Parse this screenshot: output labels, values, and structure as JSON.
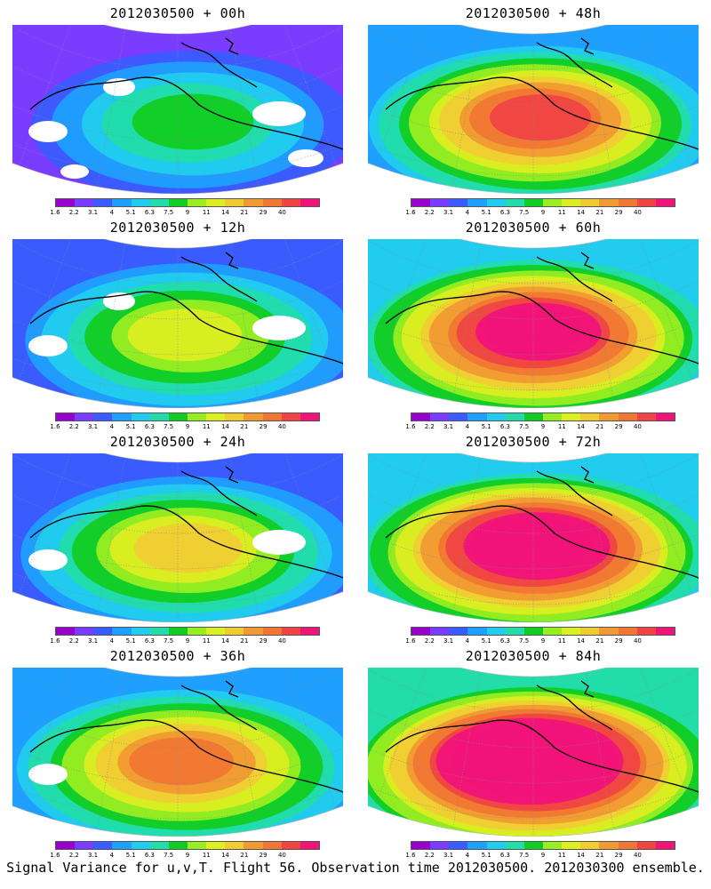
{
  "panels": [
    {
      "title": "2012030500 + 00h",
      "lead": "00h",
      "intensity": 0.15
    },
    {
      "title": "2012030500 + 48h",
      "lead": "48h",
      "intensity": 0.6
    },
    {
      "title": "2012030500 + 12h",
      "lead": "12h",
      "intensity": 0.3
    },
    {
      "title": "2012030500 + 60h",
      "lead": "60h",
      "intensity": 0.7
    },
    {
      "title": "2012030500 + 24h",
      "lead": "24h",
      "intensity": 0.4
    },
    {
      "title": "2012030500 + 72h",
      "lead": "72h",
      "intensity": 0.8
    },
    {
      "title": "2012030500 + 36h",
      "lead": "36h",
      "intensity": 0.5
    },
    {
      "title": "2012030500 + 84h",
      "lead": "84h",
      "intensity": 0.9
    }
  ],
  "colorbar": {
    "labels": [
      "1.6",
      "2.2",
      "3.1",
      "4",
      "5.1",
      "6.3",
      "7.5",
      "9",
      "11",
      "14",
      "21",
      "29",
      "40"
    ],
    "colors": [
      "#9900cc",
      "#7a3cff",
      "#3a5cff",
      "#1f9fff",
      "#22ccee",
      "#22ddaa",
      "#11cc22",
      "#99ee22",
      "#ddee22",
      "#f0cc33",
      "#f09a33",
      "#f07733",
      "#f04444",
      "#f0137a"
    ]
  },
  "caption": "Signal Variance for u,v,T. Flight 56. Observation time 2012030500. 2012030300 ensemble."
}
